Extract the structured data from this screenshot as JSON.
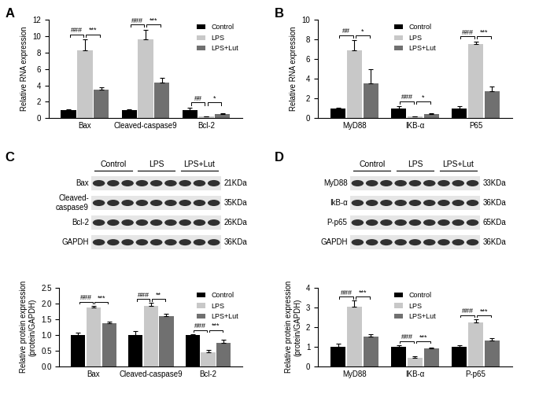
{
  "chart_data": [
    {
      "panel": "A",
      "type": "bar",
      "ylabel": "Relative RNA expression",
      "categories": [
        "Bax",
        "Cleaved-caspase9",
        "Bcl-2"
      ],
      "series": [
        {
          "name": "Control",
          "color": "#000000",
          "values": [
            1.0,
            1.0,
            1.0
          ],
          "errors": [
            0.05,
            0.1,
            0.3
          ]
        },
        {
          "name": "LPS",
          "color": "#c8c8c8",
          "values": [
            8.3,
            9.6,
            0.2
          ],
          "errors": [
            1.3,
            1.2,
            0.05
          ]
        },
        {
          "name": "LPS+Lut",
          "color": "#707070",
          "values": [
            3.5,
            4.3,
            0.55
          ],
          "errors": [
            0.3,
            0.6,
            0.1
          ]
        }
      ],
      "significance": [
        [
          "###",
          "***"
        ],
        [
          "###",
          "***"
        ],
        [
          "##",
          "*"
        ]
      ],
      "ylim": [
        0,
        12
      ],
      "yticks": [
        0,
        2,
        4,
        6,
        8,
        10,
        12
      ],
      "legend": "upper right"
    },
    {
      "panel": "B",
      "type": "bar",
      "ylabel": "Relative RNA expression",
      "categories": [
        "MyD88",
        "IKB-α",
        "P65"
      ],
      "series": [
        {
          "name": "Control",
          "color": "#000000",
          "values": [
            1.0,
            1.0,
            1.0
          ],
          "errors": [
            0.05,
            0.2,
            0.2
          ]
        },
        {
          "name": "LPS",
          "color": "#c8c8c8",
          "values": [
            6.9,
            0.15,
            7.5
          ],
          "errors": [
            1.0,
            0.05,
            0.3
          ]
        },
        {
          "name": "LPS+Lut",
          "color": "#707070",
          "values": [
            3.5,
            0.45,
            2.7
          ],
          "errors": [
            1.5,
            0.05,
            0.5
          ]
        }
      ],
      "significance": [
        [
          "##",
          "*"
        ],
        [
          "###",
          "*"
        ],
        [
          "###",
          "***"
        ]
      ],
      "ylim": [
        0,
        10
      ],
      "yticks": [
        0,
        2,
        4,
        6,
        8,
        10
      ],
      "legend": "upper center"
    },
    {
      "panel": "C",
      "type": "bar",
      "ylabel": "Relative protein expression\n(protein/GAPDH)",
      "categories": [
        "Bax",
        "Cleaved-caspase9",
        "Bcl-2"
      ],
      "series": [
        {
          "name": "Control",
          "color": "#000000",
          "values": [
            1.0,
            1.0,
            1.0
          ],
          "errors": [
            0.08,
            0.13,
            0.03
          ]
        },
        {
          "name": "LPS",
          "color": "#c8c8c8",
          "values": [
            1.87,
            1.93,
            0.45
          ],
          "errors": [
            0.05,
            0.08,
            0.07
          ]
        },
        {
          "name": "LPS+Lut",
          "color": "#707070",
          "values": [
            1.38,
            1.6,
            0.75
          ],
          "errors": [
            0.05,
            0.07,
            0.1
          ]
        }
      ],
      "significance": [
        [
          "###",
          "***"
        ],
        [
          "###",
          "**"
        ],
        [
          "###",
          "***"
        ]
      ],
      "ylim": [
        0,
        2.5
      ],
      "yticks": [
        {
          "value": 0,
          "label": "0.0"
        },
        0.5,
        {
          "value": 1,
          "label": "1.0"
        },
        1.5,
        {
          "value": 2,
          "label": "2.0"
        },
        2.5
      ],
      "legend": "upper right",
      "blot": {
        "groups": [
          "Control",
          "LPS",
          "LPS+Lut"
        ],
        "rows": [
          {
            "name": "Bax",
            "size": "21KDa"
          },
          {
            "name": "Cleaved-\ncaspase9",
            "size": "35KDa"
          },
          {
            "name": "Bcl-2",
            "size": "26KDa"
          },
          {
            "name": "GAPDH",
            "size": "36KDa"
          }
        ]
      }
    },
    {
      "panel": "D",
      "type": "bar",
      "ylabel": "Relative protein expression\n(protein/GAPDH)",
      "categories": [
        "MyD88",
        "IKB-α",
        "P-p65"
      ],
      "series": [
        {
          "name": "Control",
          "color": "#000000",
          "values": [
            1.0,
            1.0,
            1.0
          ],
          "errors": [
            0.15,
            0.08,
            0.08
          ]
        },
        {
          "name": "LPS",
          "color": "#c8c8c8",
          "values": [
            3.05,
            0.45,
            2.25
          ],
          "errors": [
            0.3,
            0.05,
            0.15
          ]
        },
        {
          "name": "LPS+Lut",
          "color": "#707070",
          "values": [
            1.5,
            0.9,
            1.3
          ],
          "errors": [
            0.15,
            0.05,
            0.15
          ]
        }
      ],
      "significance": [
        [
          "###",
          "***"
        ],
        [
          "###",
          "***"
        ],
        [
          "###",
          "***"
        ]
      ],
      "ylim": [
        0,
        4
      ],
      "yticks": [
        0,
        1,
        2,
        3,
        4
      ],
      "legend": "upper center",
      "blot": {
        "groups": [
          "Control",
          "LPS",
          "LPS+Lut"
        ],
        "rows": [
          {
            "name": "MyD88",
            "size": "33KDa"
          },
          {
            "name": "IkB-α",
            "size": "36KDa"
          },
          {
            "name": "P-p65",
            "size": "65KDa"
          },
          {
            "name": "GAPDH",
            "size": "36KDa"
          }
        ]
      }
    }
  ]
}
